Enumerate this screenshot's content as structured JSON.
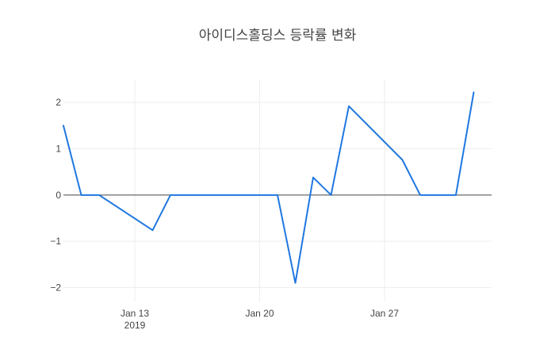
{
  "chart_data": {
    "type": "line",
    "title": "아이디스홀딩스 등락률 변화",
    "xlabel": "",
    "ylabel": "",
    "x_range": [
      "2019-01-09",
      "2019-02-02"
    ],
    "ylim": [
      -2.3,
      2.5
    ],
    "y_ticks": [
      -2,
      -1,
      0,
      1,
      2
    ],
    "y_tick_labels": [
      "−2",
      "−1",
      "0",
      "1",
      "2"
    ],
    "x_ticks": [
      {
        "date": "2019-01-13",
        "label": "Jan 13",
        "sublabel": "2019"
      },
      {
        "date": "2019-01-20",
        "label": "Jan 20",
        "sublabel": ""
      },
      {
        "date": "2019-01-27",
        "label": "Jan 27",
        "sublabel": ""
      }
    ],
    "grid": true,
    "line_color": "#1f77e0",
    "series": [
      {
        "x": [
          "2019-01-09",
          "2019-01-10",
          "2019-01-11",
          "2019-01-14",
          "2019-01-15",
          "2019-01-16",
          "2019-01-17",
          "2019-01-18",
          "2019-01-21",
          "2019-01-22",
          "2019-01-23",
          "2019-01-24",
          "2019-01-25",
          "2019-01-28",
          "2019-01-29",
          "2019-01-30",
          "2019-01-31",
          "2019-02-01"
        ],
        "values": [
          1.5,
          0,
          0,
          -0.76,
          0,
          0,
          0,
          0,
          0,
          -1.9,
          0.38,
          0,
          1.92,
          0.76,
          0,
          0,
          0,
          2.22
        ]
      }
    ]
  }
}
